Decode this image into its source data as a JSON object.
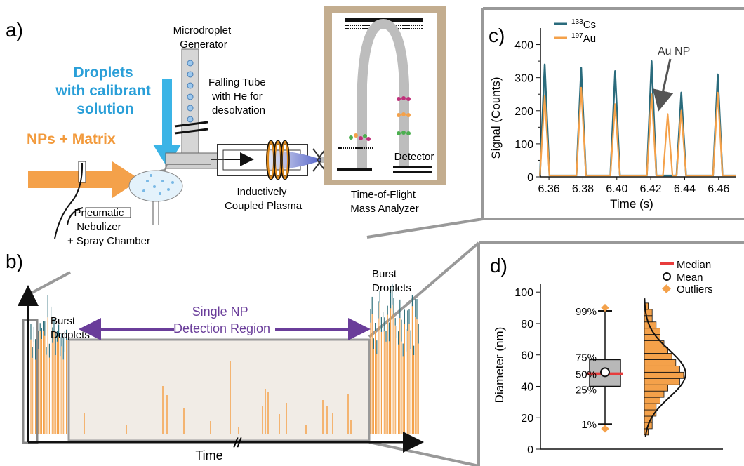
{
  "panels": {
    "a": "a)",
    "b": "b)",
    "c": "c)",
    "d": "d)"
  },
  "panel_a": {
    "droplets_label": [
      "Droplets",
      "with calibrant",
      "solution"
    ],
    "nps_label": "NPs + Matrix",
    "generator_label": [
      "Microdroplet",
      "Generator"
    ],
    "falling_tube_label": [
      "Falling Tube",
      "with He for",
      "desolvation"
    ],
    "nebulizer_label": [
      "Pneumatic",
      "Nebulizer",
      "+ Spray Chamber"
    ],
    "icp_label": [
      "Inductively",
      "Coupled Plasma"
    ],
    "tof_label": [
      "Time-of-Flight",
      "Mass Analyzer"
    ],
    "detector_label": "Detector",
    "colors": {
      "droplets_arrow": "#3bb4e6",
      "nps_arrow": "#f4a14a",
      "droplets_text": "#2a9fd8",
      "nps_text": "#f29a3c"
    }
  },
  "panel_b": {
    "burst_left": [
      "Burst",
      "Droplets"
    ],
    "burst_right": [
      "Burst",
      "Droplets"
    ],
    "region_label": [
      "Single NP",
      "Detection Region"
    ],
    "xlabel": "Time",
    "break_mark": "//",
    "colors": {
      "region_arrow": "#6a3d9a",
      "spike": "#f4a14a",
      "burst_top": "#2f6f7a",
      "region_fill": "#f1ece6"
    }
  },
  "chart_data": [
    {
      "type": "line",
      "ylabel": "Signal (Counts)",
      "xlabel": "Time (s)",
      "xlim": [
        6.355,
        6.47
      ],
      "ylim": [
        0,
        450
      ],
      "xticks": [
        "6.36",
        "6.38",
        "6.40",
        "6.42",
        "6.44",
        "6.46"
      ],
      "yticks": [
        "0",
        "50",
        "100",
        "150",
        "200",
        "250",
        "300",
        "350",
        "400"
      ],
      "annotation": "Au NP",
      "legend": [
        "133Cs",
        "197Au"
      ],
      "series": [
        {
          "name": "133Cs",
          "color": "#2a6b7c",
          "peaks": [
            [
              6.3575,
              340
            ],
            [
              6.379,
              330
            ],
            [
              6.399,
              320
            ],
            [
              6.4205,
              350
            ],
            [
              6.438,
              255
            ],
            [
              6.4595,
              310
            ]
          ]
        },
        {
          "name": "197Au",
          "color": "#f4a14a",
          "peaks": [
            [
              6.3575,
              245
            ],
            [
              6.379,
              270
            ],
            [
              6.399,
              220
            ],
            [
              6.4205,
              250
            ],
            [
              6.43,
              190
            ],
            [
              6.438,
              200
            ],
            [
              6.4595,
              255
            ]
          ]
        }
      ]
    },
    {
      "type": "box",
      "ylabel": "Diameter (nm)",
      "ylim": [
        0,
        105
      ],
      "yticks": [
        "0",
        "20",
        "40",
        "60",
        "80",
        "100"
      ],
      "legend": [
        "Median",
        "Mean",
        "Outliers"
      ],
      "percentile_labels": [
        "99%",
        "75%",
        "50%",
        "25%",
        "1%"
      ],
      "box": {
        "p1": 16,
        "p25": 40,
        "median": 48,
        "mean": 49,
        "p75": 57,
        "p99": 88,
        "outliers": [
          13,
          90
        ]
      },
      "histogram": {
        "bin_centers": [
          11,
          15,
          19,
          23,
          27,
          31,
          35,
          39,
          43,
          47,
          51,
          55,
          59,
          63,
          67,
          71,
          75,
          79,
          83,
          87,
          91
        ],
        "counts": [
          1,
          2,
          2,
          3,
          3,
          4,
          5,
          6,
          9,
          10,
          9,
          8,
          7,
          6,
          5,
          4,
          4,
          3,
          2,
          2,
          1
        ]
      },
      "colors": {
        "median": "#e83c3c",
        "outliers": "#f4a14a",
        "hist": "#f4a14a",
        "box": "#b8b8b8"
      }
    }
  ]
}
